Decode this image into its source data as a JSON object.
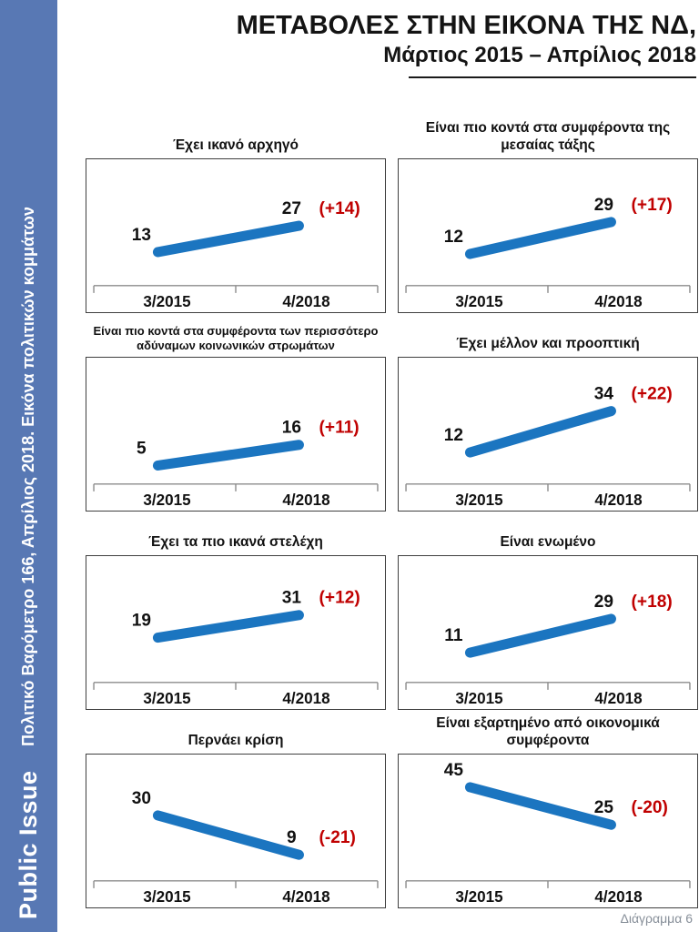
{
  "page": {
    "title": "ΜΕΤΑΒΟΛΕΣ ΣΤΗΝ ΕΙΚΟΝΑ ΤΗΣ ΝΔ,",
    "subtitle": "Μάρτιος 2015 – Απρίλιος 2018",
    "footer_note": "Διάγραμμα 6"
  },
  "sidebar": {
    "brand": "Public Issue",
    "caption": "Πολιτικό Βαρόμετρο 166, Απρίλιος 2018. Εικόνα πολιτικών κομμάτων"
  },
  "colors": {
    "line_blue": "#1B75C0",
    "change_red": "#C00000",
    "sidebar_blue": "#5878B4",
    "axis_gray": "#8C8C8C",
    "label_black": "#111111"
  },
  "chart_data": [
    {
      "type": "line",
      "title": "Έχει ικανό αρχηγό",
      "x": [
        "3/2015",
        "4/2018"
      ],
      "values": [
        13,
        27
      ],
      "change_label": "(+14)",
      "ylim": [
        0,
        55
      ],
      "grid": false,
      "legend": "none"
    },
    {
      "type": "line",
      "title": "Είναι πιο κοντά στα συμφέροντα της μεσαίας τάξης",
      "x": [
        "3/2015",
        "4/2018"
      ],
      "values": [
        12,
        29
      ],
      "change_label": "(+17)",
      "ylim": [
        0,
        55
      ],
      "grid": false,
      "legend": "none"
    },
    {
      "type": "line",
      "title": "Είναι πιο κοντά στα συμφέροντα των περισσότερο αδύναμων κοινωνικών στρωμάτων",
      "x": [
        "3/2015",
        "4/2018"
      ],
      "values": [
        5,
        16
      ],
      "change_label": "(+11)",
      "ylim": [
        0,
        55
      ],
      "grid": false,
      "legend": "none"
    },
    {
      "type": "line",
      "title": "Έχει μέλλον και προοπτική",
      "x": [
        "3/2015",
        "4/2018"
      ],
      "values": [
        12,
        34
      ],
      "change_label": "(+22)",
      "ylim": [
        0,
        55
      ],
      "grid": false,
      "legend": "none"
    },
    {
      "type": "line",
      "title": "Έχει τα πιο ικανά στελέχη",
      "x": [
        "3/2015",
        "4/2018"
      ],
      "values": [
        19,
        31
      ],
      "change_label": "(+12)",
      "ylim": [
        0,
        55
      ],
      "grid": false,
      "legend": "none"
    },
    {
      "type": "line",
      "title": "Είναι ενωμένο",
      "x": [
        "3/2015",
        "4/2018"
      ],
      "values": [
        11,
        29
      ],
      "change_label": "(+18)",
      "ylim": [
        0,
        55
      ],
      "grid": false,
      "legend": "none"
    },
    {
      "type": "line",
      "title": "Περνάει κρίση",
      "x": [
        "3/2015",
        "4/2018"
      ],
      "values": [
        30,
        9
      ],
      "change_label": "(-21)",
      "ylim": [
        0,
        55
      ],
      "grid": false,
      "legend": "none"
    },
    {
      "type": "line",
      "title": "Είναι εξαρτημένο από οικονομικά συμφέροντα",
      "x": [
        "3/2015",
        "4/2018"
      ],
      "values": [
        45,
        25
      ],
      "change_label": "(-20)",
      "ylim": [
        0,
        55
      ],
      "grid": false,
      "legend": "none"
    }
  ]
}
